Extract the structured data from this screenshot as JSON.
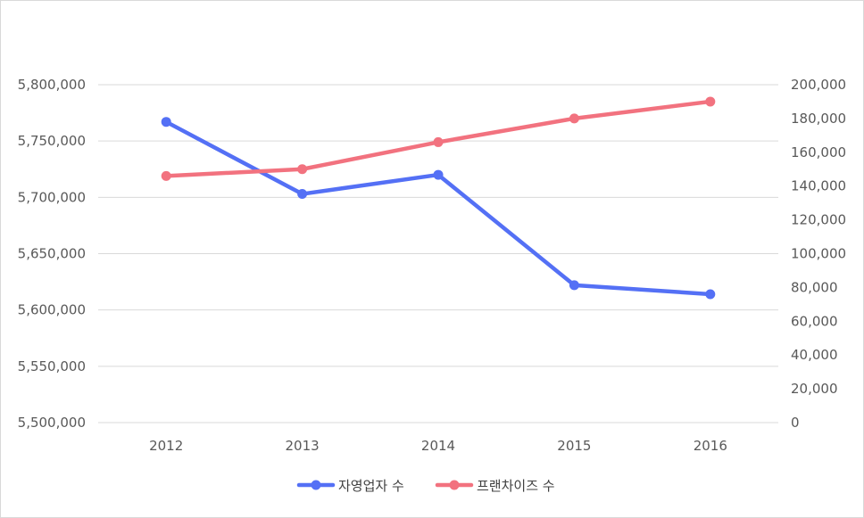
{
  "chart_data": {
    "type": "line",
    "categories": [
      "2012",
      "2013",
      "2014",
      "2015",
      "2016"
    ],
    "series": [
      {
        "name": "자영업자 수",
        "axis": "left",
        "color": "#5470f5",
        "values": [
          5767000,
          5703000,
          5720000,
          5622000,
          5614000
        ]
      },
      {
        "name": "프랜차이즈 수",
        "axis": "right",
        "color": "#f2727f",
        "values": [
          146000,
          150000,
          166000,
          180000,
          190000
        ]
      }
    ],
    "y_left": {
      "min": 5500000,
      "max": 5800000,
      "ticks": [
        5500000,
        5550000,
        5600000,
        5650000,
        5700000,
        5750000,
        5800000
      ],
      "tick_labels": [
        "5,500,000",
        "5,550,000",
        "5,600,000",
        "5,650,000",
        "5,700,000",
        "5,750,000",
        "5,800,000"
      ]
    },
    "y_right": {
      "min": 0,
      "max": 200000,
      "ticks": [
        0,
        20000,
        40000,
        60000,
        80000,
        100000,
        120000,
        140000,
        160000,
        180000,
        200000
      ],
      "tick_labels": [
        "0",
        "20,000",
        "40,000",
        "60,000",
        "80,000",
        "100,000",
        "120,000",
        "140,000",
        "160,000",
        "180,000",
        "200,000"
      ]
    },
    "grid": true,
    "legend_position": "bottom"
  }
}
